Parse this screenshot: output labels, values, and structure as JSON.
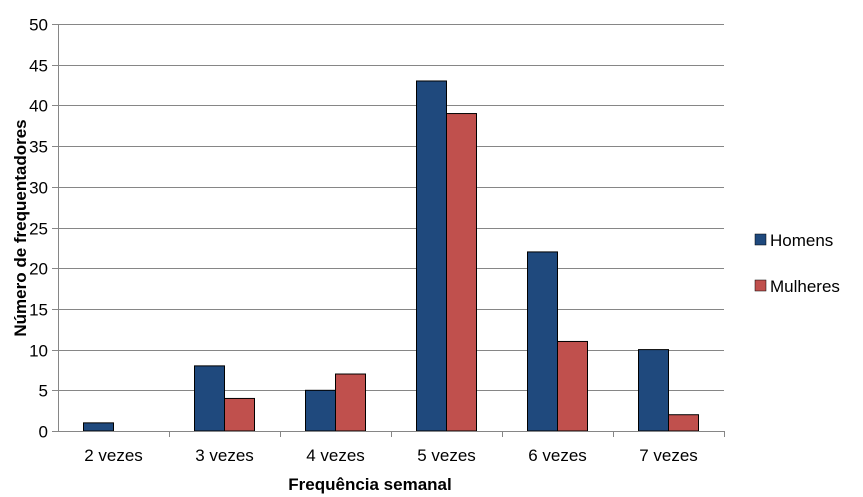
{
  "chart_data": {
    "type": "bar",
    "categories": [
      "2 vezes",
      "3 vezes",
      "4 vezes",
      "5 vezes",
      "6 vezes",
      "7 vezes"
    ],
    "series": [
      {
        "name": "Homens",
        "values": [
          1,
          8,
          5,
          43,
          22,
          10
        ],
        "color": "#1f497d"
      },
      {
        "name": "Mulheres",
        "values": [
          0,
          4,
          7,
          39,
          11,
          2
        ],
        "color": "#c0504d"
      }
    ],
    "title": "",
    "xlabel": "Frequência semanal",
    "ylabel": "Número de frequentadores",
    "ylim": [
      0,
      50
    ],
    "yticks": [
      0,
      5,
      10,
      15,
      20,
      25,
      30,
      35,
      40,
      45,
      50
    ],
    "grid": true,
    "legend_position": "right"
  }
}
